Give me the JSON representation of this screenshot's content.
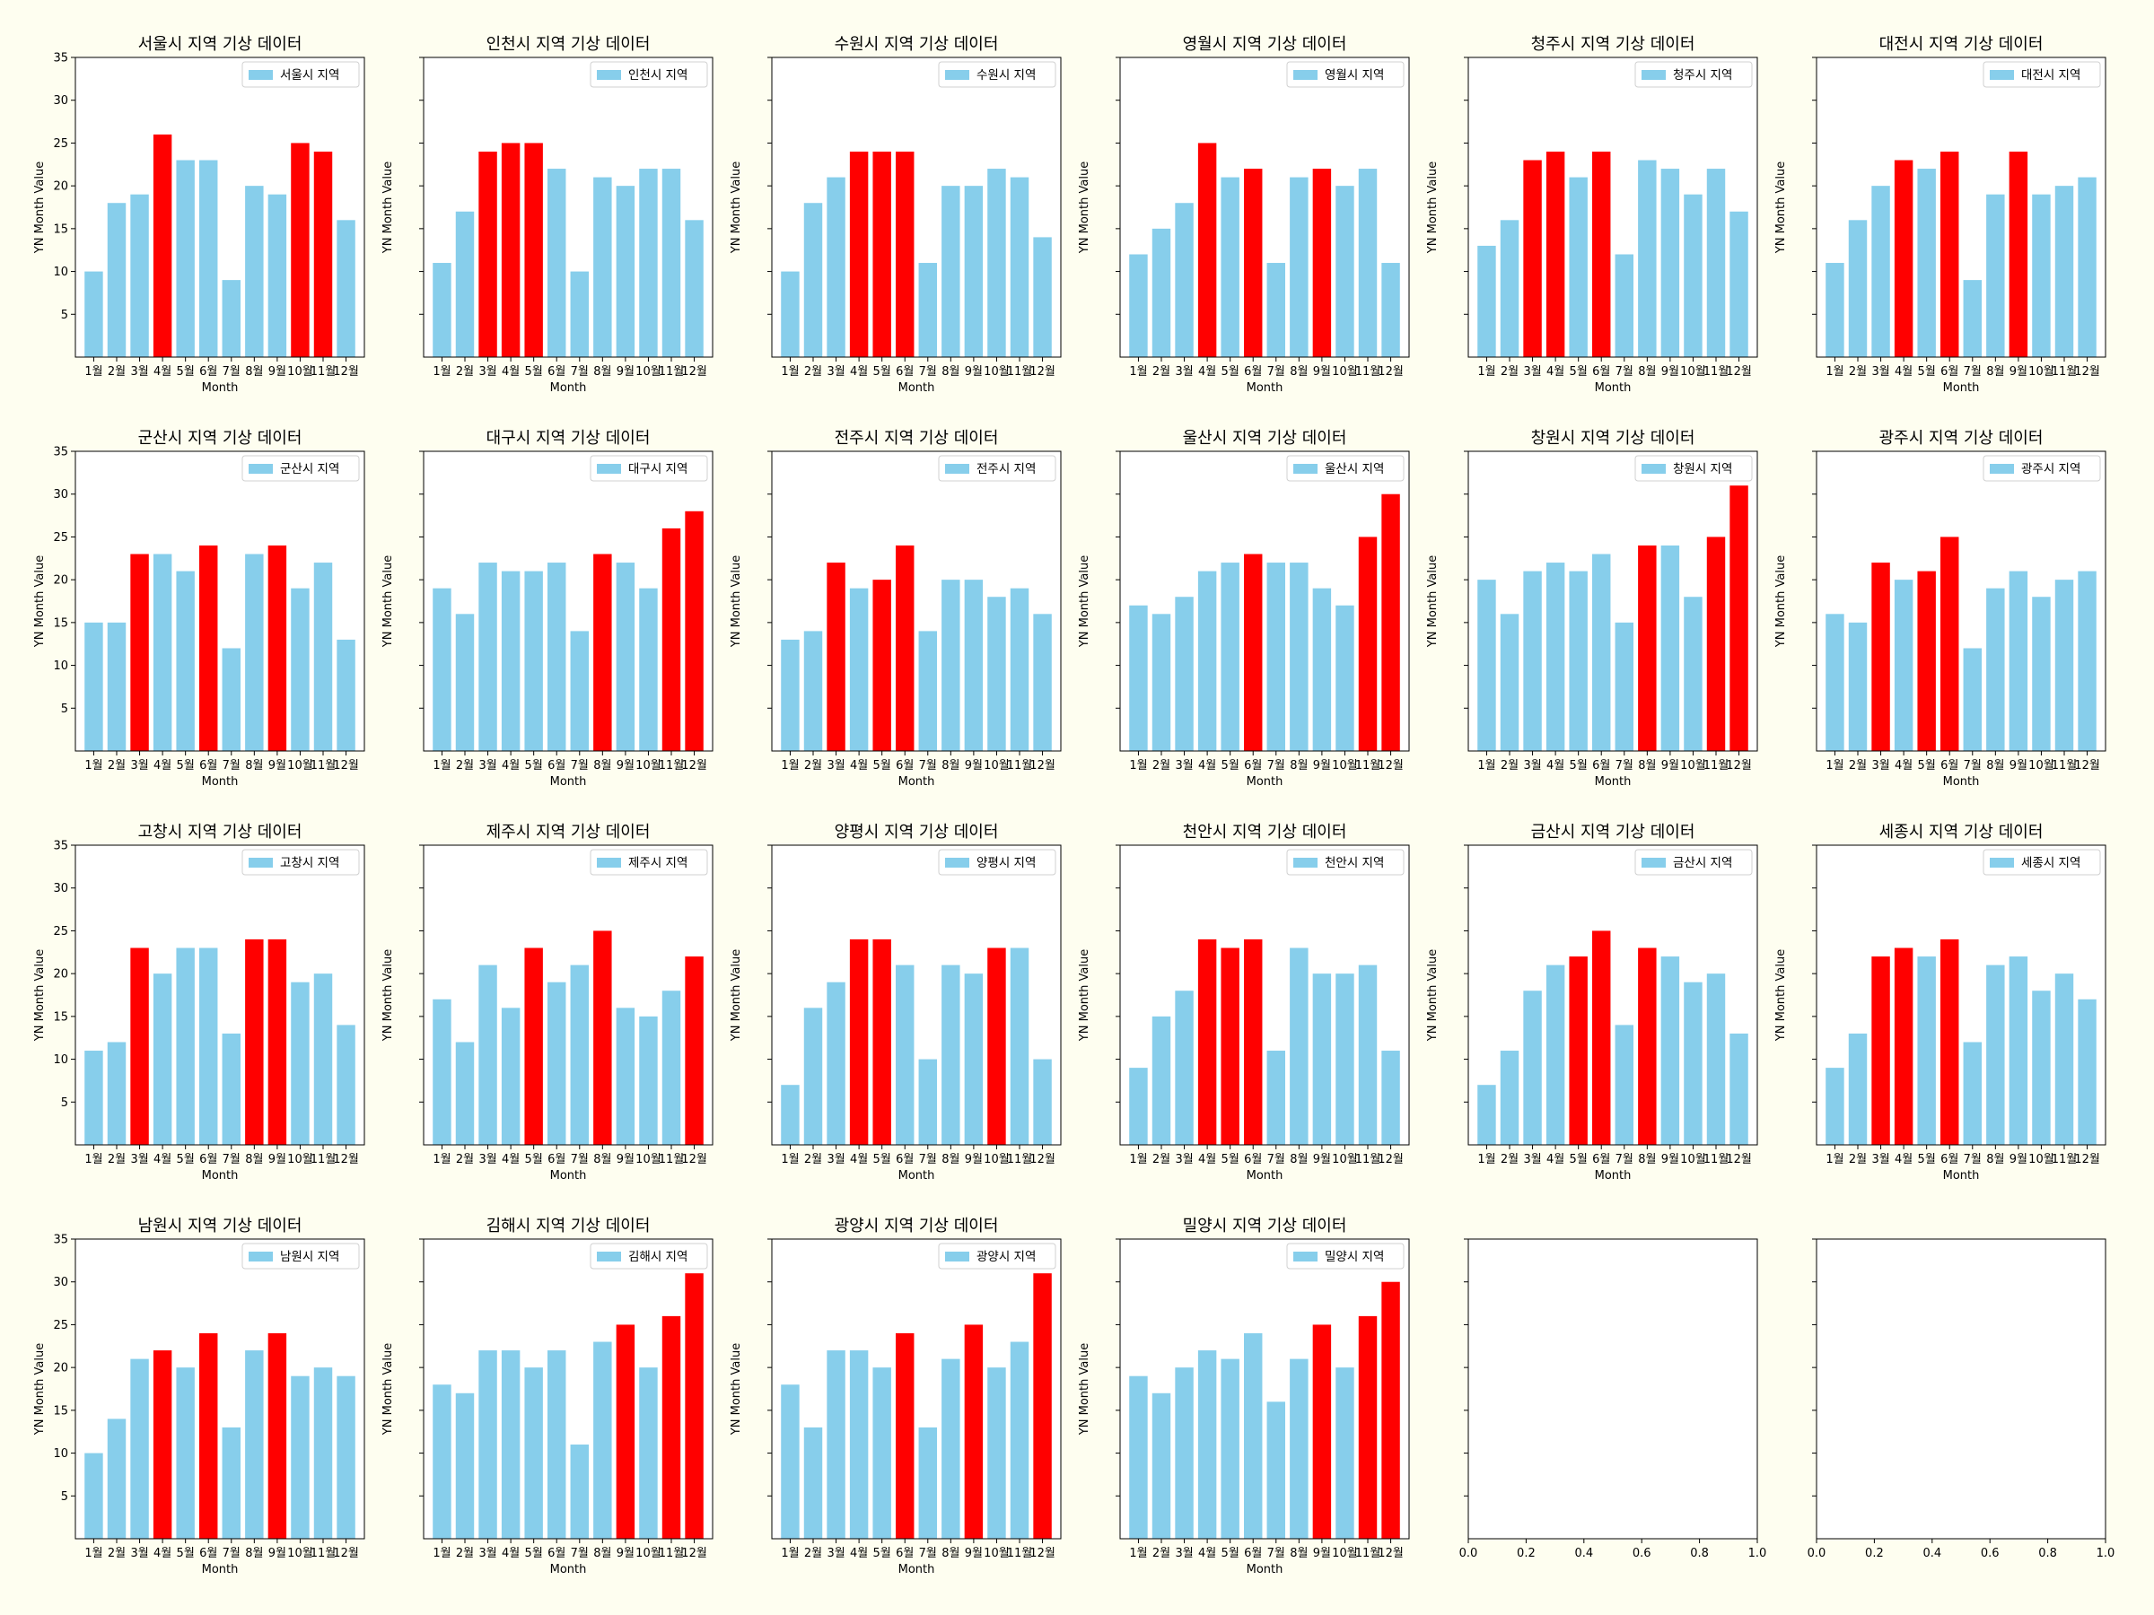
{
  "figure": {
    "background": "#fefef0"
  },
  "colors": {
    "normal": "#87ceeb",
    "highlight": "#ff0000"
  },
  "chart_data": [
    {
      "type": "bar",
      "title": "서울시 지역 기상 데이터",
      "legend": "서울시 지역",
      "xlabel": "Month",
      "ylabel": "YN Month Value",
      "categories": [
        "1월",
        "2월",
        "3월",
        "4월",
        "5월",
        "6월",
        "7월",
        "8월",
        "9월",
        "10월",
        "11월",
        "12월"
      ],
      "values": [
        10,
        18,
        19,
        26,
        23,
        23,
        9,
        20,
        19,
        25,
        24,
        16
      ],
      "highlight": [
        false,
        false,
        false,
        true,
        false,
        false,
        false,
        false,
        false,
        true,
        true,
        false
      ],
      "ylim": [
        0,
        35
      ],
      "yticks": [
        5,
        10,
        15,
        20,
        25,
        30,
        35
      ],
      "legend_position": "top-right"
    },
    {
      "type": "bar",
      "title": "인천시 지역 기상 데이터",
      "legend": "인천시 지역",
      "xlabel": "Month",
      "ylabel": "YN Month Value",
      "categories": [
        "1월",
        "2월",
        "3월",
        "4월",
        "5월",
        "6월",
        "7월",
        "8월",
        "9월",
        "10월",
        "11월",
        "12월"
      ],
      "values": [
        11,
        17,
        24,
        25,
        25,
        22,
        10,
        21,
        20,
        22,
        22,
        16
      ],
      "highlight": [
        false,
        false,
        true,
        true,
        true,
        false,
        false,
        false,
        false,
        false,
        false,
        false
      ],
      "ylim": [
        0,
        35
      ],
      "yticks": [],
      "legend_position": "top-right"
    },
    {
      "type": "bar",
      "title": "수원시 지역 기상 데이터",
      "legend": "수원시 지역",
      "xlabel": "Month",
      "ylabel": "YN Month Value",
      "categories": [
        "1월",
        "2월",
        "3월",
        "4월",
        "5월",
        "6월",
        "7월",
        "8월",
        "9월",
        "10월",
        "11월",
        "12월"
      ],
      "values": [
        10,
        18,
        21,
        24,
        24,
        24,
        11,
        20,
        20,
        22,
        21,
        14
      ],
      "highlight": [
        false,
        false,
        false,
        true,
        true,
        true,
        false,
        false,
        false,
        false,
        false,
        false
      ],
      "ylim": [
        0,
        35
      ],
      "yticks": [],
      "legend_position": "top-right"
    },
    {
      "type": "bar",
      "title": "영월시 지역 기상 데이터",
      "legend": "영월시 지역",
      "xlabel": "Month",
      "ylabel": "YN Month Value",
      "categories": [
        "1월",
        "2월",
        "3월",
        "4월",
        "5월",
        "6월",
        "7월",
        "8월",
        "9월",
        "10월",
        "11월",
        "12월"
      ],
      "values": [
        12,
        15,
        18,
        25,
        21,
        22,
        11,
        21,
        22,
        20,
        22,
        11
      ],
      "highlight": [
        false,
        false,
        false,
        true,
        false,
        true,
        false,
        false,
        true,
        false,
        false,
        false
      ],
      "ylim": [
        0,
        35
      ],
      "yticks": [],
      "legend_position": "top-right"
    },
    {
      "type": "bar",
      "title": "청주시 지역 기상 데이터",
      "legend": "청주시 지역",
      "xlabel": "Month",
      "ylabel": "YN Month Value",
      "categories": [
        "1월",
        "2월",
        "3월",
        "4월",
        "5월",
        "6월",
        "7월",
        "8월",
        "9월",
        "10월",
        "11월",
        "12월"
      ],
      "values": [
        13,
        16,
        23,
        24,
        21,
        24,
        12,
        23,
        22,
        19,
        22,
        17
      ],
      "highlight": [
        false,
        false,
        true,
        true,
        false,
        true,
        false,
        false,
        false,
        false,
        false,
        false
      ],
      "ylim": [
        0,
        35
      ],
      "yticks": [],
      "legend_position": "top-right"
    },
    {
      "type": "bar",
      "title": "대전시 지역 기상 데이터",
      "legend": "대전시 지역",
      "xlabel": "Month",
      "ylabel": "YN Month Value",
      "categories": [
        "1월",
        "2월",
        "3월",
        "4월",
        "5월",
        "6월",
        "7월",
        "8월",
        "9월",
        "10월",
        "11월",
        "12월"
      ],
      "values": [
        11,
        16,
        20,
        23,
        22,
        24,
        9,
        19,
        24,
        19,
        20,
        21
      ],
      "highlight": [
        false,
        false,
        false,
        true,
        false,
        true,
        false,
        false,
        true,
        false,
        false,
        false
      ],
      "ylim": [
        0,
        35
      ],
      "yticks": [],
      "legend_position": "top-right"
    },
    {
      "type": "bar",
      "title": "군산시 지역 기상 데이터",
      "legend": "군산시 지역",
      "xlabel": "Month",
      "ylabel": "YN Month Value",
      "categories": [
        "1월",
        "2월",
        "3월",
        "4월",
        "5월",
        "6월",
        "7월",
        "8월",
        "9월",
        "10월",
        "11월",
        "12월"
      ],
      "values": [
        15,
        15,
        23,
        23,
        21,
        24,
        12,
        23,
        24,
        19,
        22,
        13
      ],
      "highlight": [
        false,
        false,
        true,
        false,
        false,
        true,
        false,
        false,
        true,
        false,
        false,
        false
      ],
      "ylim": [
        0,
        35
      ],
      "yticks": [
        5,
        10,
        15,
        20,
        25,
        30,
        35
      ],
      "legend_position": "top-right"
    },
    {
      "type": "bar",
      "title": "대구시 지역 기상 데이터",
      "legend": "대구시 지역",
      "xlabel": "Month",
      "ylabel": "YN Month Value",
      "categories": [
        "1월",
        "2월",
        "3월",
        "4월",
        "5월",
        "6월",
        "7월",
        "8월",
        "9월",
        "10월",
        "11월",
        "12월"
      ],
      "values": [
        19,
        16,
        22,
        21,
        21,
        22,
        14,
        23,
        22,
        19,
        26,
        28
      ],
      "highlight": [
        false,
        false,
        false,
        false,
        false,
        false,
        false,
        true,
        false,
        false,
        true,
        true
      ],
      "ylim": [
        0,
        35
      ],
      "yticks": [],
      "legend_position": "top-right"
    },
    {
      "type": "bar",
      "title": "전주시 지역 기상 데이터",
      "legend": "전주시 지역",
      "xlabel": "Month",
      "ylabel": "YN Month Value",
      "categories": [
        "1월",
        "2월",
        "3월",
        "4월",
        "5월",
        "6월",
        "7월",
        "8월",
        "9월",
        "10월",
        "11월",
        "12월"
      ],
      "values": [
        13,
        14,
        22,
        19,
        20,
        24,
        14,
        20,
        20,
        18,
        19,
        16
      ],
      "highlight": [
        false,
        false,
        true,
        false,
        true,
        true,
        false,
        false,
        false,
        false,
        false,
        false
      ],
      "ylim": [
        0,
        35
      ],
      "yticks": [],
      "legend_position": "top-right"
    },
    {
      "type": "bar",
      "title": "울산시 지역 기상 데이터",
      "legend": "울산시 지역",
      "xlabel": "Month",
      "ylabel": "YN Month Value",
      "categories": [
        "1월",
        "2월",
        "3월",
        "4월",
        "5월",
        "6월",
        "7월",
        "8월",
        "9월",
        "10월",
        "11월",
        "12월"
      ],
      "values": [
        17,
        16,
        18,
        21,
        22,
        23,
        22,
        22,
        19,
        17,
        25,
        30
      ],
      "highlight": [
        false,
        false,
        false,
        false,
        false,
        true,
        false,
        false,
        false,
        false,
        true,
        true
      ],
      "ylim": [
        0,
        35
      ],
      "yticks": [],
      "legend_position": "top-right"
    },
    {
      "type": "bar",
      "title": "창원시 지역 기상 데이터",
      "legend": "창원시 지역",
      "xlabel": "Month",
      "ylabel": "YN Month Value",
      "categories": [
        "1월",
        "2월",
        "3월",
        "4월",
        "5월",
        "6월",
        "7월",
        "8월",
        "9월",
        "10월",
        "11월",
        "12월"
      ],
      "values": [
        20,
        16,
        21,
        22,
        21,
        23,
        15,
        24,
        24,
        18,
        25,
        31
      ],
      "highlight": [
        false,
        false,
        false,
        false,
        false,
        false,
        false,
        true,
        false,
        false,
        true,
        true
      ],
      "ylim": [
        0,
        35
      ],
      "yticks": [],
      "legend_position": "top-right"
    },
    {
      "type": "bar",
      "title": "광주시 지역 기상 데이터",
      "legend": "광주시 지역",
      "xlabel": "Month",
      "ylabel": "YN Month Value",
      "categories": [
        "1월",
        "2월",
        "3월",
        "4월",
        "5월",
        "6월",
        "7월",
        "8월",
        "9월",
        "10월",
        "11월",
        "12월"
      ],
      "values": [
        16,
        15,
        22,
        20,
        21,
        25,
        12,
        19,
        21,
        18,
        20,
        21
      ],
      "highlight": [
        false,
        false,
        true,
        false,
        true,
        true,
        false,
        false,
        false,
        false,
        false,
        false
      ],
      "ylim": [
        0,
        35
      ],
      "yticks": [],
      "legend_position": "top-right"
    },
    {
      "type": "bar",
      "title": "고창시 지역 기상 데이터",
      "legend": "고창시 지역",
      "xlabel": "Month",
      "ylabel": "YN Month Value",
      "categories": [
        "1월",
        "2월",
        "3월",
        "4월",
        "5월",
        "6월",
        "7월",
        "8월",
        "9월",
        "10월",
        "11월",
        "12월"
      ],
      "values": [
        11,
        12,
        23,
        20,
        23,
        23,
        13,
        24,
        24,
        19,
        20,
        14
      ],
      "highlight": [
        false,
        false,
        true,
        false,
        false,
        false,
        false,
        true,
        true,
        false,
        false,
        false
      ],
      "ylim": [
        0,
        35
      ],
      "yticks": [
        5,
        10,
        15,
        20,
        25,
        30,
        35
      ],
      "legend_position": "top-right"
    },
    {
      "type": "bar",
      "title": "제주시 지역 기상 데이터",
      "legend": "제주시 지역",
      "xlabel": "Month",
      "ylabel": "YN Month Value",
      "categories": [
        "1월",
        "2월",
        "3월",
        "4월",
        "5월",
        "6월",
        "7월",
        "8월",
        "9월",
        "10월",
        "11월",
        "12월"
      ],
      "values": [
        17,
        12,
        21,
        16,
        23,
        19,
        21,
        25,
        16,
        15,
        18,
        22
      ],
      "highlight": [
        false,
        false,
        false,
        false,
        true,
        false,
        false,
        true,
        false,
        false,
        false,
        true
      ],
      "ylim": [
        0,
        35
      ],
      "yticks": [],
      "legend_position": "top-right"
    },
    {
      "type": "bar",
      "title": "양평시 지역 기상 데이터",
      "legend": "양평시 지역",
      "xlabel": "Month",
      "ylabel": "YN Month Value",
      "categories": [
        "1월",
        "2월",
        "3월",
        "4월",
        "5월",
        "6월",
        "7월",
        "8월",
        "9월",
        "10월",
        "11월",
        "12월"
      ],
      "values": [
        7,
        16,
        19,
        24,
        24,
        21,
        10,
        21,
        20,
        23,
        23,
        10
      ],
      "highlight": [
        false,
        false,
        false,
        true,
        true,
        false,
        false,
        false,
        false,
        true,
        false,
        false
      ],
      "ylim": [
        0,
        35
      ],
      "yticks": [],
      "legend_position": "top-right"
    },
    {
      "type": "bar",
      "title": "천안시 지역 기상 데이터",
      "legend": "천안시 지역",
      "xlabel": "Month",
      "ylabel": "YN Month Value",
      "categories": [
        "1월",
        "2월",
        "3월",
        "4월",
        "5월",
        "6월",
        "7월",
        "8월",
        "9월",
        "10월",
        "11월",
        "12월"
      ],
      "values": [
        9,
        15,
        18,
        24,
        23,
        24,
        11,
        23,
        20,
        20,
        21,
        11
      ],
      "highlight": [
        false,
        false,
        false,
        true,
        true,
        true,
        false,
        false,
        false,
        false,
        false,
        false
      ],
      "ylim": [
        0,
        35
      ],
      "yticks": [],
      "legend_position": "top-right"
    },
    {
      "type": "bar",
      "title": "금산시 지역 기상 데이터",
      "legend": "금산시 지역",
      "xlabel": "Month",
      "ylabel": "YN Month Value",
      "categories": [
        "1월",
        "2월",
        "3월",
        "4월",
        "5월",
        "6월",
        "7월",
        "8월",
        "9월",
        "10월",
        "11월",
        "12월"
      ],
      "values": [
        7,
        11,
        18,
        21,
        22,
        25,
        14,
        23,
        22,
        19,
        20,
        13
      ],
      "highlight": [
        false,
        false,
        false,
        false,
        true,
        true,
        false,
        true,
        false,
        false,
        false,
        false
      ],
      "ylim": [
        0,
        35
      ],
      "yticks": [],
      "legend_position": "top-right"
    },
    {
      "type": "bar",
      "title": "세종시 지역 기상 데이터",
      "legend": "세종시 지역",
      "xlabel": "Month",
      "ylabel": "YN Month Value",
      "categories": [
        "1월",
        "2월",
        "3월",
        "4월",
        "5월",
        "6월",
        "7월",
        "8월",
        "9월",
        "10월",
        "11월",
        "12월"
      ],
      "values": [
        9,
        13,
        22,
        23,
        22,
        24,
        12,
        21,
        22,
        18,
        20,
        17
      ],
      "highlight": [
        false,
        false,
        true,
        true,
        false,
        true,
        false,
        false,
        false,
        false,
        false,
        false
      ],
      "ylim": [
        0,
        35
      ],
      "yticks": [],
      "legend_position": "top-right"
    },
    {
      "type": "bar",
      "title": "남원시 지역 기상 데이터",
      "legend": "남원시 지역",
      "xlabel": "Month",
      "ylabel": "YN Month Value",
      "categories": [
        "1월",
        "2월",
        "3월",
        "4월",
        "5월",
        "6월",
        "7월",
        "8월",
        "9월",
        "10월",
        "11월",
        "12월"
      ],
      "values": [
        10,
        14,
        21,
        22,
        20,
        24,
        13,
        22,
        24,
        19,
        20,
        19
      ],
      "highlight": [
        false,
        false,
        false,
        true,
        false,
        true,
        false,
        false,
        true,
        false,
        false,
        false
      ],
      "ylim": [
        0,
        35
      ],
      "yticks": [
        5,
        10,
        15,
        20,
        25,
        30,
        35
      ],
      "legend_position": "top-right"
    },
    {
      "type": "bar",
      "title": "김해시 지역 기상 데이터",
      "legend": "김해시 지역",
      "xlabel": "Month",
      "ylabel": "YN Month Value",
      "categories": [
        "1월",
        "2월",
        "3월",
        "4월",
        "5월",
        "6월",
        "7월",
        "8월",
        "9월",
        "10월",
        "11월",
        "12월"
      ],
      "values": [
        18,
        17,
        22,
        22,
        20,
        22,
        11,
        23,
        25,
        20,
        26,
        31
      ],
      "highlight": [
        false,
        false,
        false,
        false,
        false,
        false,
        false,
        false,
        true,
        false,
        true,
        true
      ],
      "ylim": [
        0,
        35
      ],
      "yticks": [],
      "legend_position": "top-right"
    },
    {
      "type": "bar",
      "title": "광양시 지역 기상 데이터",
      "legend": "광양시 지역",
      "xlabel": "Month",
      "ylabel": "YN Month Value",
      "categories": [
        "1월",
        "2월",
        "3월",
        "4월",
        "5월",
        "6월",
        "7월",
        "8월",
        "9월",
        "10월",
        "11월",
        "12월"
      ],
      "values": [
        18,
        13,
        22,
        22,
        20,
        24,
        13,
        21,
        25,
        20,
        23,
        31
      ],
      "highlight": [
        false,
        false,
        false,
        false,
        false,
        true,
        false,
        false,
        true,
        false,
        false,
        true
      ],
      "ylim": [
        0,
        35
      ],
      "yticks": [],
      "legend_position": "top-right"
    },
    {
      "type": "bar",
      "title": "밀양시 지역 기상 데이터",
      "legend": "밀양시 지역",
      "xlabel": "Month",
      "ylabel": "YN Month Value",
      "categories": [
        "1월",
        "2월",
        "3월",
        "4월",
        "5월",
        "6월",
        "7월",
        "8월",
        "9월",
        "10월",
        "11월",
        "12월"
      ],
      "values": [
        19,
        17,
        20,
        22,
        21,
        24,
        16,
        21,
        25,
        20,
        26,
        30
      ],
      "highlight": [
        false,
        false,
        false,
        false,
        false,
        false,
        false,
        false,
        true,
        false,
        true,
        true
      ],
      "ylim": [
        0,
        35
      ],
      "yticks": [],
      "legend_position": "top-right"
    },
    {
      "type": "empty",
      "xlim": [
        0,
        1
      ],
      "xticks": [
        "0.0",
        "0.2",
        "0.4",
        "0.6",
        "0.8",
        "1.0"
      ]
    },
    {
      "type": "empty",
      "xlim": [
        0,
        1
      ],
      "xticks": [
        "0.0",
        "0.2",
        "0.4",
        "0.6",
        "0.8",
        "1.0"
      ]
    }
  ]
}
